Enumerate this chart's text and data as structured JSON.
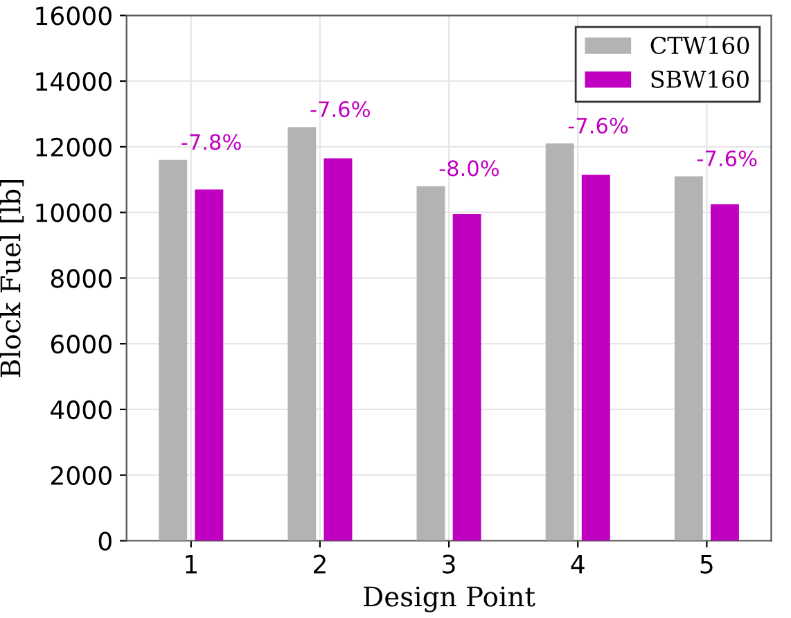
{
  "chart_data": {
    "type": "bar",
    "xlabel": "Design Point",
    "ylabel": "Block Fuel [lb]",
    "categories": [
      "1",
      "2",
      "3",
      "4",
      "5"
    ],
    "series": [
      {
        "name": "CTW160",
        "color": "#b3b3b3",
        "values": [
          11600,
          12600,
          10800,
          12100,
          11100
        ]
      },
      {
        "name": "SBW160",
        "color": "#c000c0",
        "values": [
          10700,
          11650,
          9950,
          11150,
          10250
        ]
      }
    ],
    "ylim": [
      0,
      16000
    ],
    "yticks": [
      0,
      2000,
      4000,
      6000,
      8000,
      10000,
      12000,
      14000,
      16000
    ],
    "grid": true,
    "legend": "top right",
    "annotations": [
      {
        "text": "-7.8%",
        "x": "1",
        "y": 11600
      },
      {
        "text": "-7.6%",
        "x": "2",
        "y": 12600
      },
      {
        "text": "-8.0%",
        "x": "3",
        "y": 10800
      },
      {
        "text": "-7.6%",
        "x": "4",
        "y": 12100
      },
      {
        "text": "-7.6%",
        "x": "5",
        "y": 11100
      }
    ]
  }
}
